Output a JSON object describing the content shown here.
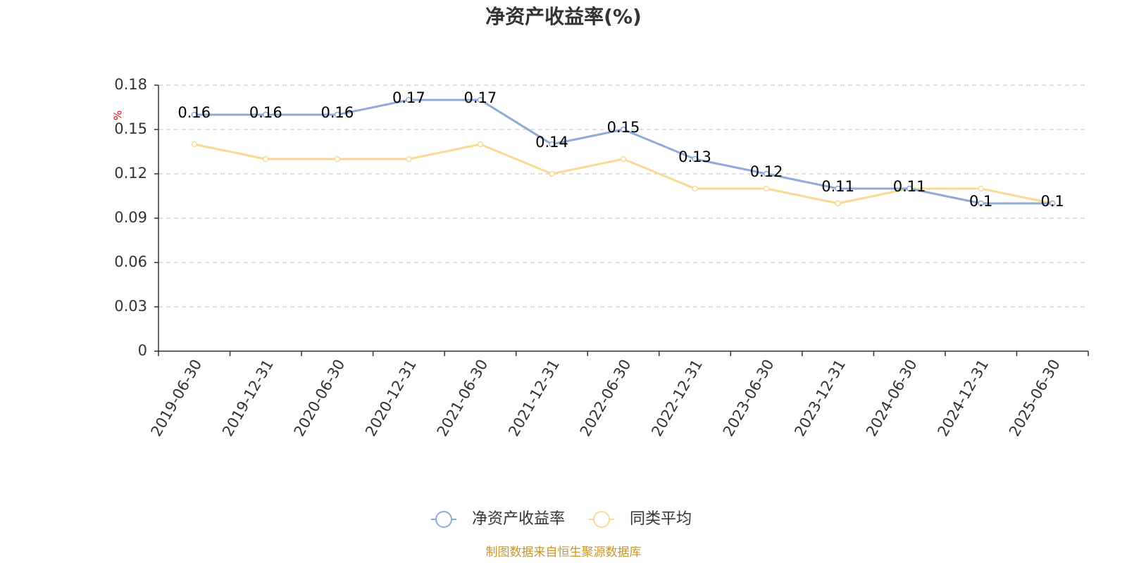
{
  "colors": {
    "series_main": "#8eaad8",
    "series_avg": "#fad994",
    "unit": "#e00000",
    "source": "#c8962c",
    "grid": "#cccccc",
    "axis": "#333333"
  },
  "legend": {
    "items": [
      {
        "name": "净资产收益率",
        "color": "#8eaad8"
      },
      {
        "name": "同类平均",
        "color": "#fad994"
      }
    ]
  },
  "source_text": "制图数据来自恒生聚源数据库",
  "chart_data": {
    "type": "line",
    "title": "净资产收益率(%)",
    "ylabel": "%",
    "xlabel": "",
    "ylim": [
      0,
      0.18
    ],
    "yticks": [
      0,
      0.03,
      0.06,
      0.09,
      0.12,
      0.15,
      0.18
    ],
    "ytick_labels": [
      "0",
      "0.03",
      "0.06",
      "0.09",
      "0.12",
      "0.15",
      "0.18"
    ],
    "grid": true,
    "legend_position": "bottom-center",
    "categories": [
      "2019-06-30",
      "2019-12-31",
      "2020-06-30",
      "2020-12-31",
      "2021-06-30",
      "2021-12-31",
      "2022-06-30",
      "2022-12-31",
      "2023-06-30",
      "2023-12-31",
      "2024-06-30",
      "2024-12-31",
      "2025-06-30"
    ],
    "series": [
      {
        "name": "净资产收益率",
        "values": [
          0.16,
          0.16,
          0.16,
          0.17,
          0.17,
          0.14,
          0.15,
          0.13,
          0.12,
          0.11,
          0.11,
          0.1,
          0.1
        ],
        "labels": [
          "0.16",
          "0.16",
          "0.16",
          "0.17",
          "0.17",
          "0.14",
          "0.15",
          "0.13",
          "0.12",
          "0.11",
          "0.11",
          "0.1",
          "0.1"
        ],
        "color": "#8eaad8"
      },
      {
        "name": "同类平均",
        "values": [
          0.14,
          0.13,
          0.13,
          0.13,
          0.14,
          0.12,
          0.13,
          0.11,
          0.11,
          0.1,
          0.11,
          0.11,
          0.1
        ],
        "color": "#fad994"
      }
    ]
  }
}
